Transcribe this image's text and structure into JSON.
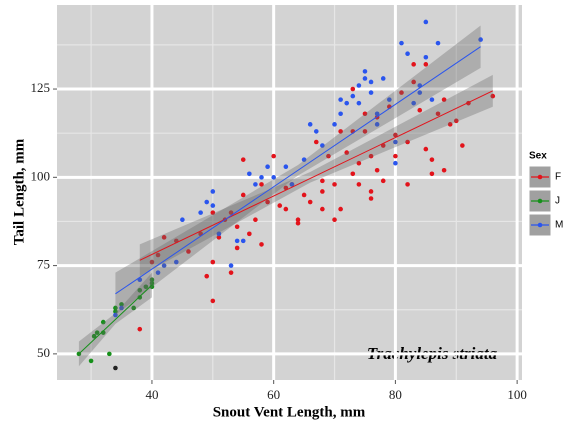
{
  "chart_data": {
    "type": "scatter",
    "x_label": "Snout Vent Length, mm",
    "y_label": "Tail Length, mm",
    "annotation": "Trachylepis striata",
    "legend_title": "Sex",
    "legend_position": "right",
    "xlim": [
      24.4,
      100.8
    ],
    "ylim": [
      42.6,
      148.8
    ],
    "xticks": [
      40,
      60,
      80,
      100
    ],
    "yticks": [
      50,
      75,
      100,
      125
    ],
    "minor_xticks": [
      30,
      50,
      70,
      90
    ],
    "minor_yticks": [
      62.5,
      87.5,
      112.5,
      137.5
    ],
    "grid": true,
    "series": [
      {
        "name": "F",
        "color": "#e3131b",
        "x": [
          38,
          40,
          42,
          41,
          44,
          46,
          48,
          49,
          50,
          50,
          50,
          51,
          52,
          53,
          53,
          54,
          54,
          55,
          55,
          56,
          57,
          58,
          58,
          59,
          60,
          61,
          62,
          62,
          63,
          64,
          64,
          65,
          66,
          67,
          68,
          68,
          68,
          69,
          70,
          70,
          71,
          71,
          72,
          73,
          73,
          73,
          74,
          74,
          75,
          75,
          76,
          76,
          76,
          77,
          77,
          78,
          78,
          79,
          80,
          80,
          81,
          82,
          82,
          83,
          83,
          84,
          85,
          85,
          86,
          86,
          87,
          88,
          88,
          89,
          90,
          91,
          92,
          96
        ],
        "y": [
          57,
          76,
          83,
          78,
          82,
          79,
          84,
          72,
          65,
          76,
          90,
          83,
          88,
          73,
          90,
          80,
          86,
          105,
          95,
          84,
          88,
          98,
          81,
          93,
          106,
          92,
          91,
          97,
          98,
          88,
          87,
          95,
          93,
          110,
          99,
          96,
          91,
          106,
          98,
          88,
          91,
          113,
          107,
          101,
          113,
          125,
          104,
          98,
          113,
          118,
          96,
          94,
          106,
          102,
          117,
          99,
          109,
          120,
          112,
          106,
          124,
          110,
          98,
          127,
          132,
          119,
          132,
          108,
          105,
          101,
          118,
          102,
          122,
          115,
          116,
          109,
          121,
          123
        ],
        "fit": {
          "x": [
            38,
            96
          ],
          "y": [
            76.5,
            124.5
          ]
        },
        "band": {
          "x": [
            38,
            66,
            96
          ],
          "lower": [
            72,
            98.5,
            120
          ],
          "upper": [
            81,
            101.5,
            129
          ]
        }
      },
      {
        "name": "J",
        "color": "#16901a",
        "x": [
          28,
          30,
          30.5,
          31,
          32,
          32,
          33,
          34,
          34,
          35,
          37,
          38,
          38,
          39,
          40,
          40,
          40
        ],
        "y": [
          50,
          48,
          55,
          56,
          56,
          59,
          50,
          63,
          62,
          64,
          63,
          66,
          68,
          69,
          70,
          71,
          69
        ],
        "fit": {
          "x": [
            28,
            40
          ],
          "y": [
            50,
            69.5
          ]
        },
        "band": {
          "x": [
            28,
            34,
            40
          ],
          "lower": [
            46.5,
            58.5,
            66
          ],
          "upper": [
            53.5,
            61.5,
            73
          ]
        }
      },
      {
        "name": "M",
        "color": "#2a55ee",
        "x": [
          34,
          35,
          38,
          41,
          42,
          44,
          45,
          48,
          49,
          50,
          50,
          51,
          53,
          54,
          55,
          56,
          57,
          58,
          59,
          60,
          62,
          63,
          65,
          66,
          67,
          68,
          70,
          71,
          71,
          72,
          73,
          74,
          74,
          75,
          75,
          76,
          76,
          77,
          77,
          78,
          79,
          80,
          80,
          81,
          82,
          83,
          84,
          84,
          85,
          85,
          86,
          87,
          94
        ],
        "y": [
          61,
          63,
          71,
          73,
          75,
          76,
          88,
          90,
          93,
          92,
          96,
          84,
          75,
          82,
          82,
          101,
          98,
          100,
          103,
          100,
          103,
          98,
          105,
          115,
          113,
          109,
          115,
          122,
          118,
          121,
          123,
          121,
          126,
          130,
          128,
          124,
          127,
          118,
          115,
          128,
          122,
          104,
          110,
          138,
          135,
          121,
          124,
          126,
          144,
          134,
          122,
          138,
          139
        ],
        "fit": {
          "x": [
            34,
            94
          ],
          "y": [
            67,
            137
          ]
        },
        "band": {
          "x": [
            34,
            64,
            94
          ],
          "lower": [
            61,
            100.5,
            131
          ],
          "upper": [
            73,
            103.5,
            143
          ]
        }
      }
    ],
    "extra_points": {
      "color": "#222222",
      "x": [
        34
      ],
      "y": [
        46
      ]
    }
  }
}
